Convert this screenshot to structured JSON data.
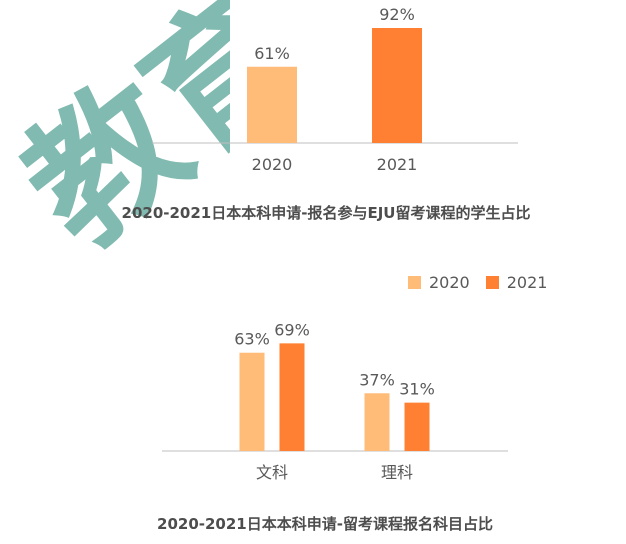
{
  "colors": {
    "series_2020": "#ffbb78",
    "series_2021": "#ff8033",
    "axis": "#bfbfbf",
    "label": "#595959",
    "watermark": "#6aaea2"
  },
  "watermark": {
    "text": "教育",
    "icon": "watermark-logo"
  },
  "chart_data": [
    {
      "type": "bar",
      "categories": [
        "2020",
        "2021"
      ],
      "values": [
        61,
        92
      ],
      "data_labels": [
        "61%",
        "92%"
      ],
      "title": "2020-2021日本本科申请-报名参与EJU留考课程的学生占比",
      "xlabel": "",
      "ylabel": "",
      "ylim": [
        0,
        100
      ],
      "grid": false,
      "legend": "none"
    },
    {
      "type": "bar",
      "categories": [
        "文科",
        "理科"
      ],
      "series": [
        {
          "name": "2020",
          "values": [
            63,
            37
          ],
          "data_labels": [
            "63%",
            "37%"
          ]
        },
        {
          "name": "2021",
          "values": [
            69,
            31
          ],
          "data_labels": [
            "69%",
            "31%"
          ]
        }
      ],
      "title": "2020-2021日本本科申请-留考课程报名科目占比",
      "xlabel": "",
      "ylabel": "",
      "ylim": [
        0,
        100
      ],
      "grid": false,
      "legend": "top-right"
    }
  ]
}
